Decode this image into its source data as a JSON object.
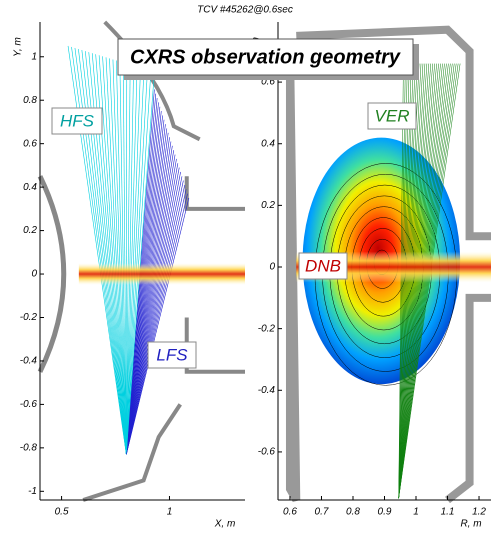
{
  "title": "TCV #45262@0.6sec",
  "banner": "CXRS observation geometry",
  "chart_data": [
    {
      "type": "line",
      "xlabel": "X, m",
      "ylabel": "Y, m",
      "xlim": [
        0.4,
        1.35
      ],
      "ylim": [
        -1.04,
        1.16
      ],
      "xticks": [
        0.5,
        1
      ],
      "yticks": [
        1,
        0.8,
        0.6,
        0.4,
        0.2,
        0,
        -0.2,
        -0.4,
        -0.6,
        -0.8,
        -1
      ],
      "annotations": [
        "HFS",
        "LFS"
      ]
    },
    {
      "type": "line",
      "xlabel": "R, m",
      "ylabel": "Z, m",
      "xlim": [
        0.562,
        1.238
      ],
      "ylim": [
        -0.756,
        0.795
      ],
      "xticks": [
        0.6,
        0.7,
        0.8,
        0.9,
        1,
        1.1,
        1.2
      ],
      "yticks": [
        0.6,
        0.4,
        0.2,
        0,
        -0.2,
        -0.4,
        -0.6
      ],
      "annotations": [
        "VER",
        "DNB"
      ]
    }
  ]
}
